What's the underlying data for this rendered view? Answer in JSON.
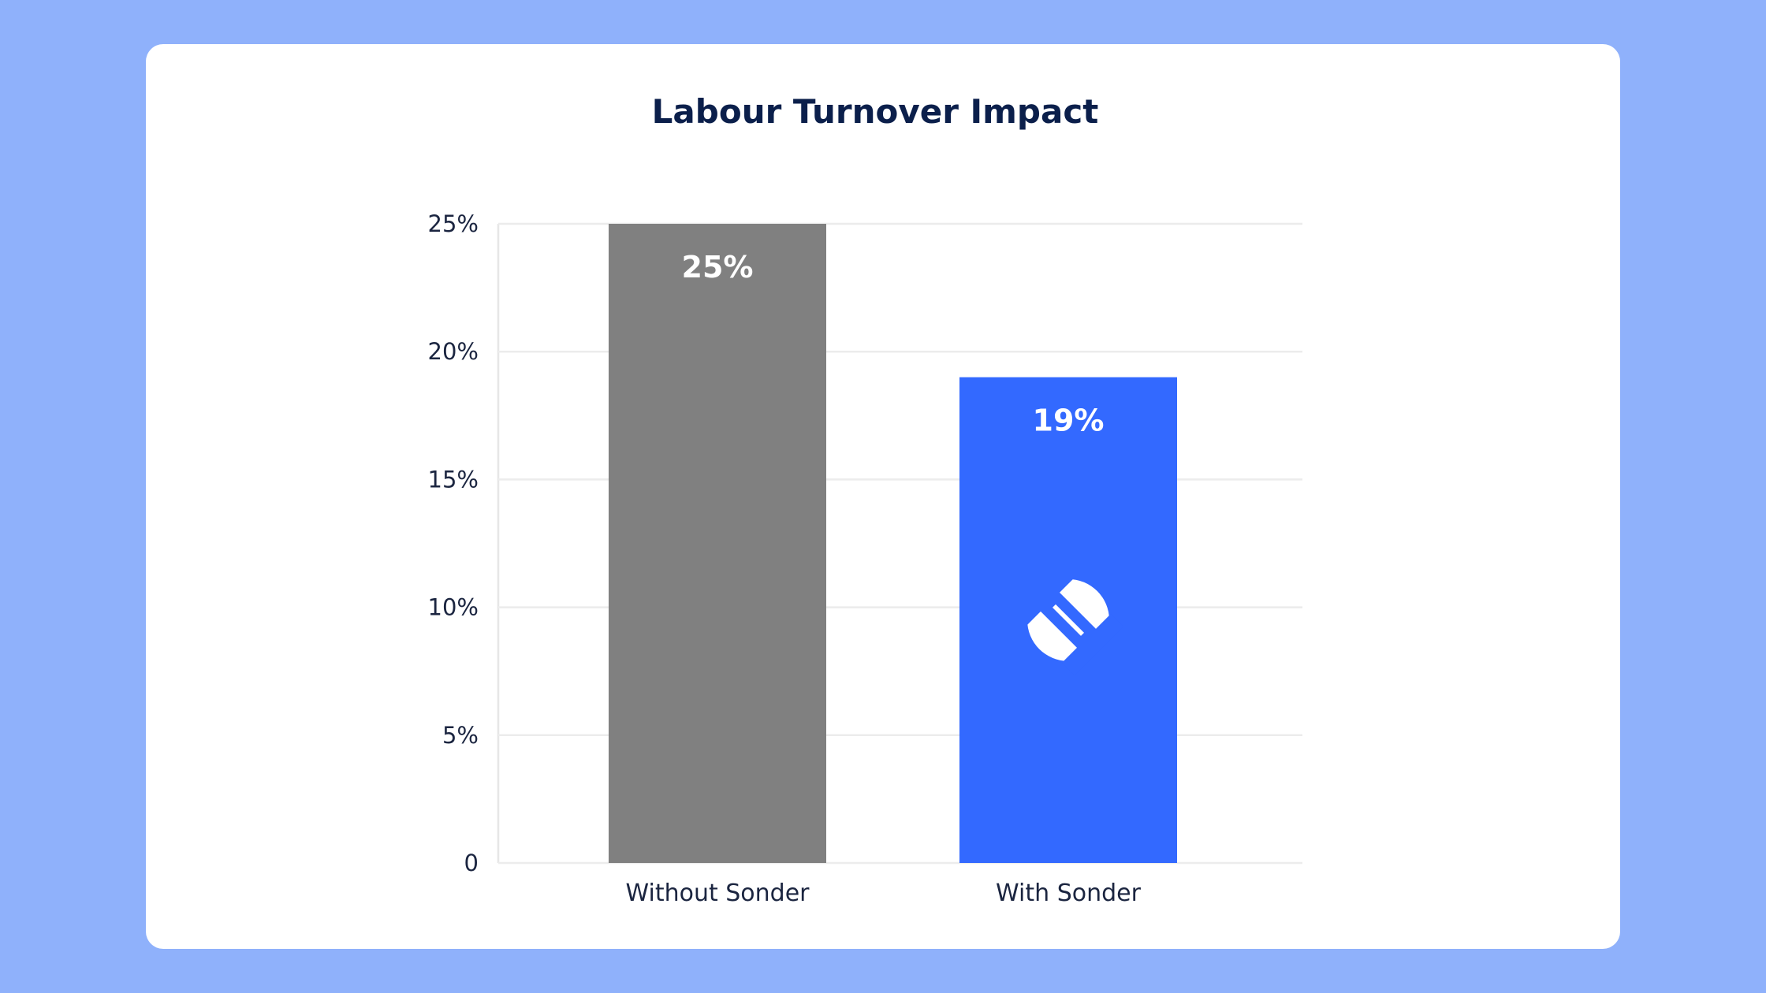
{
  "chart_data": {
    "type": "bar",
    "title": "Labour Turnover Impact",
    "xlabel": "",
    "ylabel": "",
    "categories": [
      "Without Sonder",
      "With Sonder"
    ],
    "values": [
      25,
      19
    ],
    "data_labels": [
      "25%",
      "19%"
    ],
    "ylim": [
      0,
      25
    ],
    "yticks": [
      0,
      5,
      10,
      15,
      20,
      25
    ],
    "ytick_labels": [
      "0",
      "5%",
      "10%",
      "15%",
      "20%",
      "25%"
    ],
    "grid": true,
    "legend": "none",
    "colors": [
      "#808080",
      "#3369ff"
    ],
    "bar_icons": [
      "",
      "sonder-logo"
    ]
  },
  "colors": {
    "background": "#8fb1fb",
    "card": "#ffffff",
    "title": "#0b1f4b",
    "text": "#1b2540",
    "grid": "#ececec"
  }
}
